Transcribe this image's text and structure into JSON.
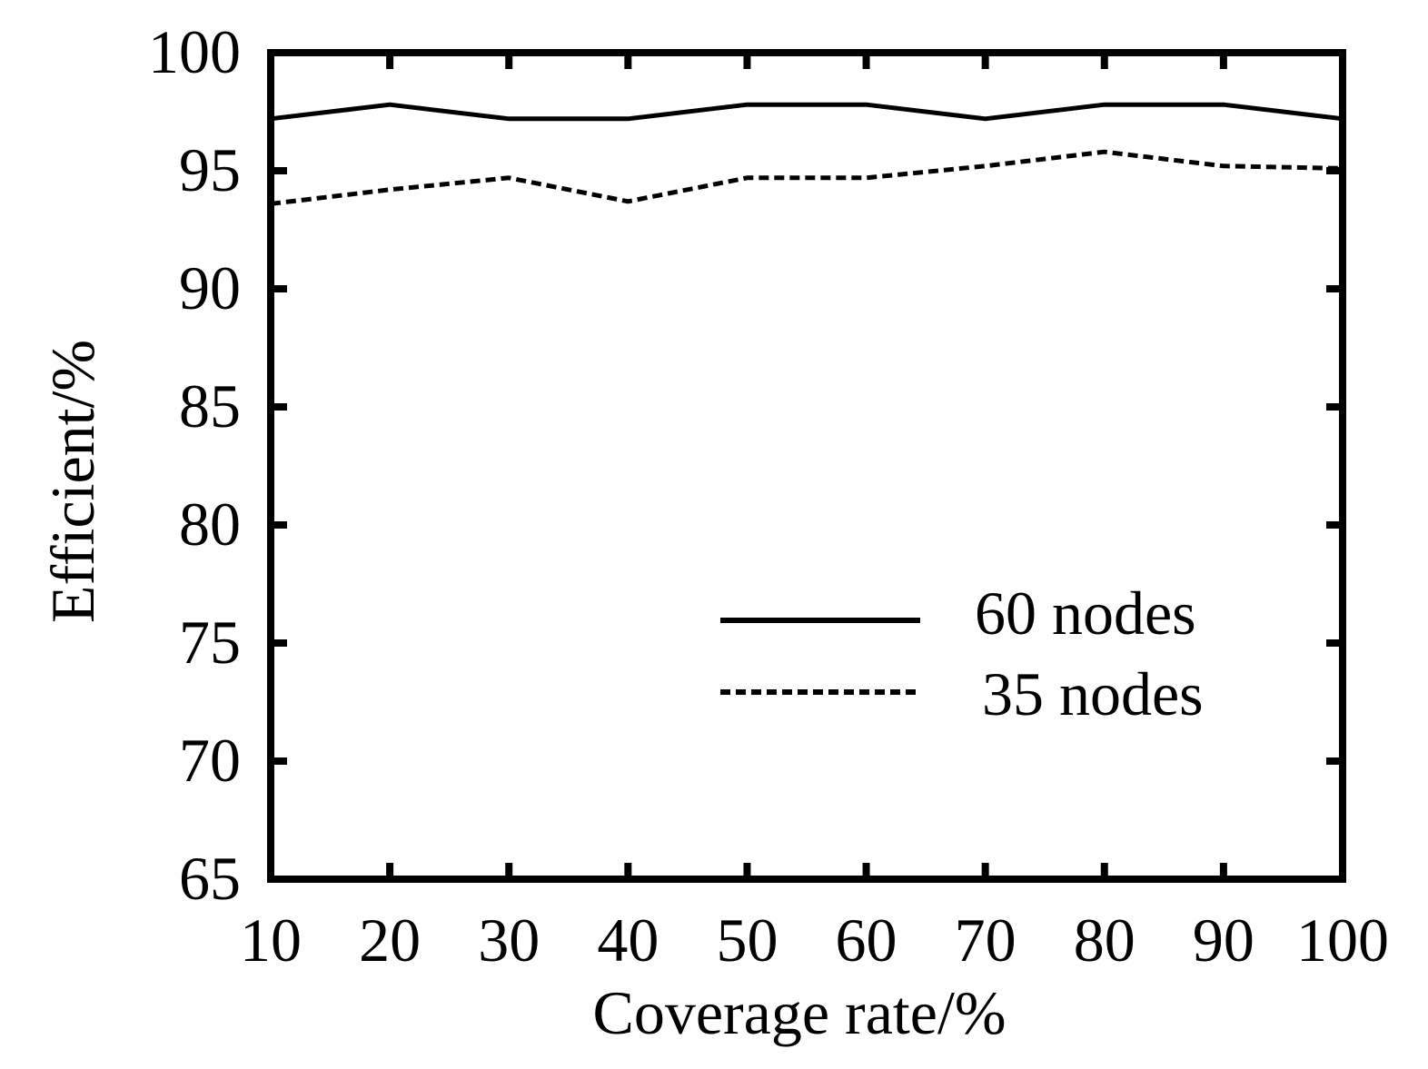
{
  "chart_data": {
    "type": "line",
    "title": "",
    "xlabel": "Coverage rate/%",
    "ylabel": "Efficient/%",
    "x": [
      10,
      20,
      30,
      40,
      50,
      60,
      70,
      80,
      90,
      100
    ],
    "xticks": [
      "10",
      "20",
      "30",
      "40",
      "50",
      "60",
      "70",
      "80",
      "90",
      "100"
    ],
    "yticks": [
      "65",
      "70",
      "75",
      "80",
      "85",
      "90",
      "95",
      "100"
    ],
    "xlim": [
      10,
      100
    ],
    "ylim": [
      65,
      100
    ],
    "grid": false,
    "legend_position": "bottom-right",
    "series": [
      {
        "name": "60 nodes",
        "style": "solid",
        "color": "#000000",
        "values": [
          97.2,
          97.8,
          97.2,
          97.2,
          97.8,
          97.8,
          97.2,
          97.8,
          97.8,
          97.2
        ]
      },
      {
        "name": "35 nodes",
        "style": "dashed",
        "color": "#000000",
        "values": [
          93.6,
          94.2,
          94.7,
          93.7,
          94.7,
          94.7,
          95.2,
          95.8,
          95.2,
          95.1
        ]
      }
    ]
  }
}
